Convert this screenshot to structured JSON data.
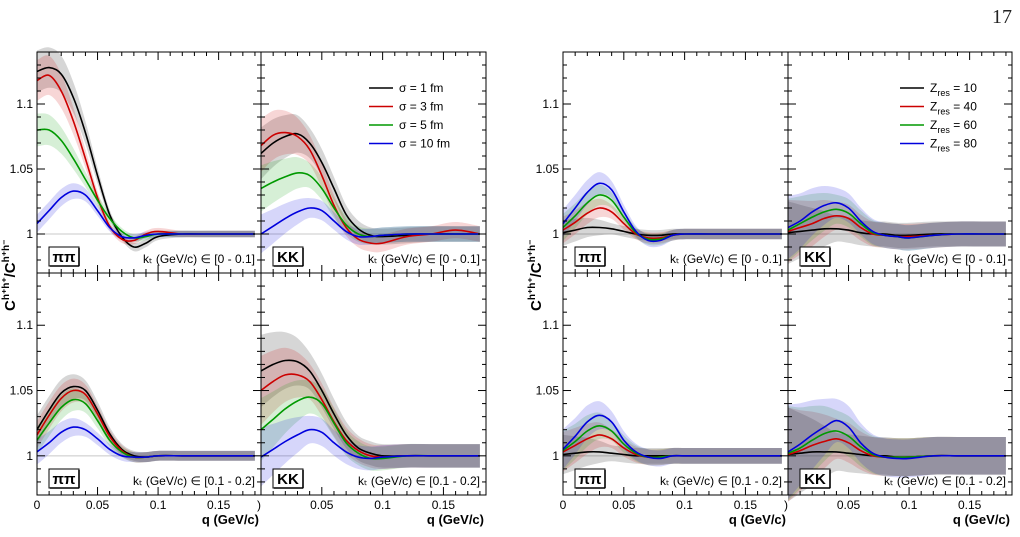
{
  "page_number": "17",
  "y_axis_label": "C",
  "y_axis_sup_a": "h⁺h⁺",
  "y_axis_sup_b": "h⁺h⁻",
  "x_axis_label": "q (GeV/c)",
  "x_ticks": [
    "0",
    "0.05",
    "0.1",
    "0.15"
  ],
  "y_ticks": [
    "1",
    "1.05",
    "1.1"
  ],
  "edge_tick": ")",
  "legend_sigma": [
    {
      "label": "σ = 1 fm",
      "color": "#000000"
    },
    {
      "label": "σ = 3 fm",
      "color": "#cc0000"
    },
    {
      "label": "σ = 5 fm",
      "color": "#009900"
    },
    {
      "label": "σ = 10 fm",
      "color": "#0000dd"
    }
  ],
  "legend_zres": [
    {
      "label": "Z",
      "sub": "res",
      "val": " = 10",
      "color": "#000000"
    },
    {
      "label": "Z",
      "sub": "res",
      "val": " = 40",
      "color": "#cc0000"
    },
    {
      "label": "Z",
      "sub": "res",
      "val": " = 60",
      "color": "#009900"
    },
    {
      "label": "Z",
      "sub": "res",
      "val": " = 80",
      "color": "#0000dd"
    }
  ],
  "kt_label_low": "kₜ (GeV/c) ∈ [0 - 0.1]",
  "kt_label_high": "kₜ (GeV/c) ∈ [0.1 - 0.2]",
  "chart_data": [
    {
      "type": "line",
      "group": "sigma",
      "species": "ππ",
      "kt": "[0 - 0.1]",
      "xlim": [
        0,
        0.185
      ],
      "ylim": [
        0.97,
        1.14
      ],
      "x": [
        0.0,
        0.01,
        0.02,
        0.03,
        0.04,
        0.05,
        0.06,
        0.07,
        0.08,
        0.09,
        0.1,
        0.12,
        0.14,
        0.16,
        0.18
      ],
      "series": [
        {
          "name": "σ = 1 fm",
          "color": "#000000",
          "values": [
            1.125,
            1.128,
            1.123,
            1.105,
            1.078,
            1.045,
            1.015,
            0.998,
            0.99,
            0.993,
            0.998,
            1.0,
            1.0,
            1.0,
            1.0
          ]
        },
        {
          "name": "σ = 3 fm",
          "color": "#cc0000",
          "values": [
            1.118,
            1.122,
            1.11,
            1.087,
            1.058,
            1.028,
            1.006,
            0.996,
            0.995,
            1.0,
            1.002,
            1.0,
            1.0,
            1.0,
            1.0
          ]
        },
        {
          "name": "σ = 5 fm",
          "color": "#009900",
          "values": [
            1.08,
            1.08,
            1.072,
            1.058,
            1.042,
            1.026,
            1.012,
            1.002,
            0.997,
            0.998,
            1.0,
            1.0,
            1.0,
            1.0,
            1.0
          ]
        },
        {
          "name": "σ = 10 fm",
          "color": "#0000dd",
          "values": [
            1.008,
            1.018,
            1.028,
            1.033,
            1.03,
            1.018,
            1.005,
            0.998,
            0.997,
            0.999,
            1.0,
            1.0,
            1.0,
            1.0,
            1.0
          ]
        }
      ]
    },
    {
      "type": "line",
      "group": "sigma",
      "species": "KK",
      "kt": "[0 - 0.1]",
      "xlim": [
        0,
        0.185
      ],
      "ylim": [
        0.97,
        1.14
      ],
      "x": [
        0.0,
        0.01,
        0.02,
        0.03,
        0.04,
        0.05,
        0.06,
        0.07,
        0.08,
        0.09,
        0.1,
        0.12,
        0.14,
        0.16,
        0.18
      ],
      "series": [
        {
          "name": "σ = 1 fm",
          "color": "#000000",
          "values": [
            1.062,
            1.07,
            1.075,
            1.077,
            1.07,
            1.055,
            1.035,
            1.015,
            1.004,
            0.999,
            0.998,
            0.999,
            1.0,
            1.0,
            1.0
          ]
        },
        {
          "name": "σ = 3 fm",
          "color": "#cc0000",
          "values": [
            1.068,
            1.076,
            1.078,
            1.075,
            1.065,
            1.045,
            1.022,
            1.005,
            0.996,
            0.993,
            0.993,
            0.998,
            1.0,
            1.003,
            1.0
          ]
        },
        {
          "name": "σ = 5 fm",
          "color": "#009900",
          "values": [
            1.035,
            1.04,
            1.044,
            1.047,
            1.045,
            1.035,
            1.02,
            1.007,
            1.0,
            0.998,
            0.999,
            1.0,
            1.0,
            1.0,
            1.0
          ]
        },
        {
          "name": "σ = 10 fm",
          "color": "#0000dd",
          "values": [
            1.0,
            1.006,
            1.012,
            1.017,
            1.02,
            1.018,
            1.01,
            1.002,
            0.998,
            0.998,
            0.999,
            1.0,
            1.0,
            1.0,
            1.0
          ]
        }
      ]
    },
    {
      "type": "line",
      "group": "sigma",
      "species": "ππ",
      "kt": "[0.1 - 0.2]",
      "xlim": [
        0,
        0.185
      ],
      "ylim": [
        0.97,
        1.14
      ],
      "x": [
        0.0,
        0.01,
        0.02,
        0.03,
        0.04,
        0.05,
        0.06,
        0.07,
        0.08,
        0.09,
        0.1,
        0.12,
        0.14,
        0.16,
        0.18
      ],
      "series": [
        {
          "name": "σ = 1 fm",
          "color": "#000000",
          "values": [
            1.02,
            1.035,
            1.048,
            1.053,
            1.05,
            1.035,
            1.017,
            1.005,
            1.0,
            0.999,
            1.0,
            1.0,
            1.0,
            1.0,
            1.0
          ]
        },
        {
          "name": "σ = 3 fm",
          "color": "#cc0000",
          "values": [
            1.016,
            1.031,
            1.044,
            1.05,
            1.047,
            1.032,
            1.015,
            1.004,
            0.999,
            0.999,
            1.0,
            1.0,
            1.0,
            1.0,
            1.0
          ]
        },
        {
          "name": "σ = 5 fm",
          "color": "#009900",
          "values": [
            1.012,
            1.025,
            1.037,
            1.043,
            1.04,
            1.027,
            1.012,
            1.003,
            0.999,
            0.999,
            1.0,
            1.0,
            1.0,
            1.0,
            1.0
          ]
        },
        {
          "name": "σ = 10 fm",
          "color": "#0000dd",
          "values": [
            1.003,
            1.01,
            1.018,
            1.022,
            1.02,
            1.013,
            1.005,
            1.0,
            0.999,
            0.999,
            1.0,
            1.0,
            1.0,
            1.0,
            1.0
          ]
        }
      ]
    },
    {
      "type": "line",
      "group": "sigma",
      "species": "KK",
      "kt": "[0.1 - 0.2]",
      "xlim": [
        0,
        0.185
      ],
      "ylim": [
        0.97,
        1.14
      ],
      "x": [
        0.0,
        0.01,
        0.02,
        0.03,
        0.04,
        0.05,
        0.06,
        0.07,
        0.08,
        0.09,
        0.1,
        0.12,
        0.14,
        0.16,
        0.18
      ],
      "series": [
        {
          "name": "σ = 1 fm",
          "color": "#000000",
          "values": [
            1.065,
            1.07,
            1.073,
            1.072,
            1.065,
            1.05,
            1.032,
            1.016,
            1.006,
            1.002,
            1.0,
            1.0,
            1.0,
            1.0,
            1.0
          ]
        },
        {
          "name": "σ = 3 fm",
          "color": "#cc0000",
          "values": [
            1.05,
            1.057,
            1.062,
            1.062,
            1.057,
            1.043,
            1.026,
            1.012,
            1.004,
            1.0,
            0.999,
            1.0,
            1.0,
            1.0,
            1.0
          ]
        },
        {
          "name": "σ = 5 fm",
          "color": "#009900",
          "values": [
            1.02,
            1.028,
            1.036,
            1.042,
            1.045,
            1.04,
            1.025,
            1.01,
            1.002,
            0.998,
            0.998,
            1.0,
            1.0,
            1.0,
            1.0
          ]
        },
        {
          "name": "σ = 10 fm",
          "color": "#0000dd",
          "values": [
            0.999,
            1.005,
            1.011,
            1.016,
            1.02,
            1.018,
            1.01,
            1.003,
            0.999,
            0.998,
            0.999,
            1.0,
            1.0,
            1.0,
            1.0
          ]
        }
      ]
    },
    {
      "type": "line",
      "group": "zres",
      "species": "ππ",
      "kt": "[0 - 0.1]",
      "xlim": [
        0,
        0.185
      ],
      "ylim": [
        0.97,
        1.14
      ],
      "x": [
        0.0,
        0.01,
        0.02,
        0.03,
        0.04,
        0.05,
        0.06,
        0.07,
        0.08,
        0.09,
        0.1,
        0.12,
        0.14,
        0.16,
        0.18
      ],
      "series": [
        {
          "name": "Z res = 10",
          "color": "#000000",
          "values": [
            1.001,
            1.003,
            1.005,
            1.005,
            1.004,
            1.002,
            1.0,
            0.999,
            0.999,
            1.0,
            1.0,
            1.0,
            1.0,
            1.0,
            1.0
          ]
        },
        {
          "name": "Z res = 40",
          "color": "#cc0000",
          "values": [
            1.003,
            1.009,
            1.016,
            1.02,
            1.017,
            1.008,
            1.0,
            0.997,
            0.997,
            0.999,
            1.0,
            1.0,
            1.0,
            1.0,
            1.0
          ]
        },
        {
          "name": "Z res = 60",
          "color": "#009900",
          "values": [
            1.005,
            1.014,
            1.024,
            1.03,
            1.026,
            1.013,
            1.001,
            0.996,
            0.996,
            0.999,
            1.0,
            1.0,
            1.0,
            1.0,
            1.0
          ]
        },
        {
          "name": "Z res = 80",
          "color": "#0000dd",
          "values": [
            1.008,
            1.02,
            1.032,
            1.039,
            1.034,
            1.017,
            1.002,
            0.995,
            0.995,
            0.999,
            1.0,
            1.0,
            1.0,
            1.0,
            1.0
          ]
        }
      ]
    },
    {
      "type": "line",
      "group": "zres",
      "species": "KK",
      "kt": "[0 - 0.1]",
      "xlim": [
        0,
        0.185
      ],
      "ylim": [
        0.97,
        1.14
      ],
      "x": [
        0.0,
        0.01,
        0.02,
        0.03,
        0.04,
        0.05,
        0.06,
        0.07,
        0.08,
        0.09,
        0.1,
        0.12,
        0.14,
        0.16,
        0.18
      ],
      "series": [
        {
          "name": "Z res = 10",
          "color": "#000000",
          "values": [
            1.001,
            1.002,
            1.003,
            1.004,
            1.004,
            1.003,
            1.001,
            1.0,
            1.0,
            0.999,
            0.999,
            1.0,
            1.0,
            1.0,
            1.0
          ]
        },
        {
          "name": "Z res = 40",
          "color": "#cc0000",
          "values": [
            1.002,
            1.005,
            1.008,
            1.012,
            1.014,
            1.012,
            1.005,
            1.0,
            0.999,
            0.998,
            0.998,
            0.999,
            1.0,
            1.0,
            1.0
          ]
        },
        {
          "name": "Z res = 60",
          "color": "#009900",
          "values": [
            1.003,
            1.008,
            1.013,
            1.017,
            1.019,
            1.016,
            1.008,
            1.001,
            0.999,
            0.998,
            0.997,
            0.999,
            1.0,
            1.0,
            1.0
          ]
        },
        {
          "name": "Z res = 80",
          "color": "#0000dd",
          "values": [
            1.005,
            1.01,
            1.017,
            1.022,
            1.024,
            1.02,
            1.01,
            1.002,
            0.999,
            0.998,
            0.997,
            0.999,
            1.0,
            1.0,
            1.0
          ]
        }
      ]
    },
    {
      "type": "line",
      "group": "zres",
      "species": "ππ",
      "kt": "[0.1 - 0.2]",
      "xlim": [
        0,
        0.185
      ],
      "ylim": [
        0.97,
        1.14
      ],
      "x": [
        0.0,
        0.01,
        0.02,
        0.03,
        0.04,
        0.05,
        0.06,
        0.07,
        0.08,
        0.09,
        0.1,
        0.12,
        0.14,
        0.16,
        0.18
      ],
      "series": [
        {
          "name": "Z res = 10",
          "color": "#000000",
          "values": [
            1.001,
            1.002,
            1.003,
            1.003,
            1.002,
            1.001,
            1.0,
            1.0,
            1.0,
            1.0,
            1.0,
            1.0,
            1.0,
            1.0,
            1.0
          ]
        },
        {
          "name": "Z res = 40",
          "color": "#cc0000",
          "values": [
            1.003,
            1.008,
            1.013,
            1.016,
            1.013,
            1.006,
            1.001,
            0.999,
            0.999,
            1.0,
            1.0,
            1.0,
            1.0,
            1.0,
            1.0
          ]
        },
        {
          "name": "Z res = 60",
          "color": "#009900",
          "values": [
            1.004,
            1.011,
            1.019,
            1.023,
            1.019,
            1.009,
            1.002,
            0.999,
            0.999,
            1.0,
            1.0,
            1.0,
            1.0,
            1.0,
            1.0
          ]
        },
        {
          "name": "Z res = 80",
          "color": "#0000dd",
          "values": [
            1.005,
            1.015,
            1.026,
            1.031,
            1.026,
            1.012,
            1.003,
            0.999,
            0.998,
            1.0,
            1.0,
            1.0,
            1.0,
            1.0,
            1.0
          ]
        }
      ]
    },
    {
      "type": "line",
      "group": "zres",
      "species": "KK",
      "kt": "[0.1 - 0.2]",
      "xlim": [
        0,
        0.185
      ],
      "ylim": [
        0.97,
        1.14
      ],
      "x": [
        0.0,
        0.01,
        0.02,
        0.03,
        0.04,
        0.05,
        0.06,
        0.07,
        0.08,
        0.09,
        0.1,
        0.12,
        0.14,
        0.16,
        0.18
      ],
      "series": [
        {
          "name": "Z res = 10",
          "color": "#000000",
          "values": [
            1.001,
            1.002,
            1.003,
            1.003,
            1.003,
            1.002,
            1.001,
            1.0,
            1.0,
            0.999,
            0.999,
            1.0,
            1.0,
            1.0,
            1.0
          ]
        },
        {
          "name": "Z res = 40",
          "color": "#cc0000",
          "values": [
            1.001,
            1.004,
            1.008,
            1.011,
            1.013,
            1.01,
            1.004,
            1.0,
            0.999,
            0.999,
            0.999,
            1.0,
            1.0,
            1.0,
            1.0
          ]
        },
        {
          "name": "Z res = 60",
          "color": "#009900",
          "values": [
            1.002,
            1.006,
            1.012,
            1.017,
            1.019,
            1.015,
            1.007,
            1.001,
            0.999,
            0.999,
            0.999,
            1.0,
            1.0,
            1.0,
            1.0
          ]
        },
        {
          "name": "Z res = 80",
          "color": "#0000dd",
          "values": [
            1.003,
            1.009,
            1.016,
            1.022,
            1.027,
            1.022,
            1.01,
            1.002,
            0.999,
            0.998,
            0.998,
            1.0,
            1.0,
            1.0,
            1.0
          ]
        }
      ]
    }
  ]
}
